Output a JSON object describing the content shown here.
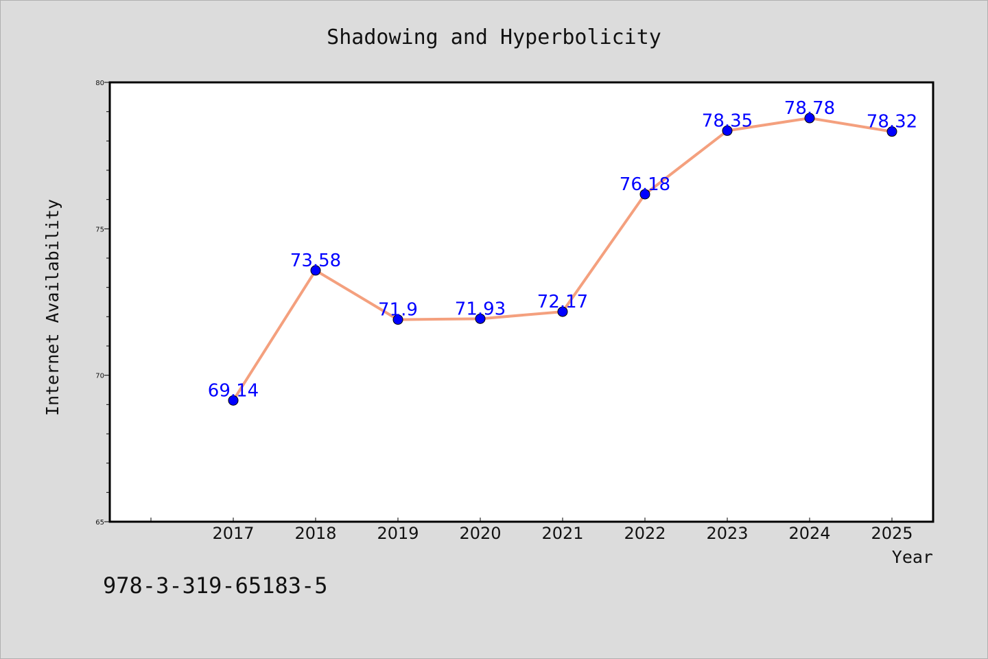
{
  "chart_data": {
    "type": "line",
    "title": "Shadowing and Hyperbolicity",
    "xlabel": "Year",
    "ylabel": "Internet Availability",
    "categories": [
      "2017",
      "2018",
      "2019",
      "2020",
      "2021",
      "2022",
      "2023",
      "2024",
      "2025"
    ],
    "series": [
      {
        "values": [
          69.14,
          73.58,
          71.9,
          71.93,
          72.17,
          76.18,
          78.35,
          78.78,
          78.32
        ],
        "labels": [
          "69.14",
          "73.58",
          "71.9",
          "71.93",
          "72.17",
          "76.18",
          "78.35",
          "78.78",
          "78.32"
        ],
        "line_color": "#f4a07e",
        "marker_color": "#0000ff"
      }
    ],
    "ylim": [
      65,
      80
    ],
    "yticks": [
      "65",
      "70",
      "75",
      "80"
    ],
    "grid": false,
    "legend": "none"
  },
  "annotation": "978-3-319-65183-5"
}
